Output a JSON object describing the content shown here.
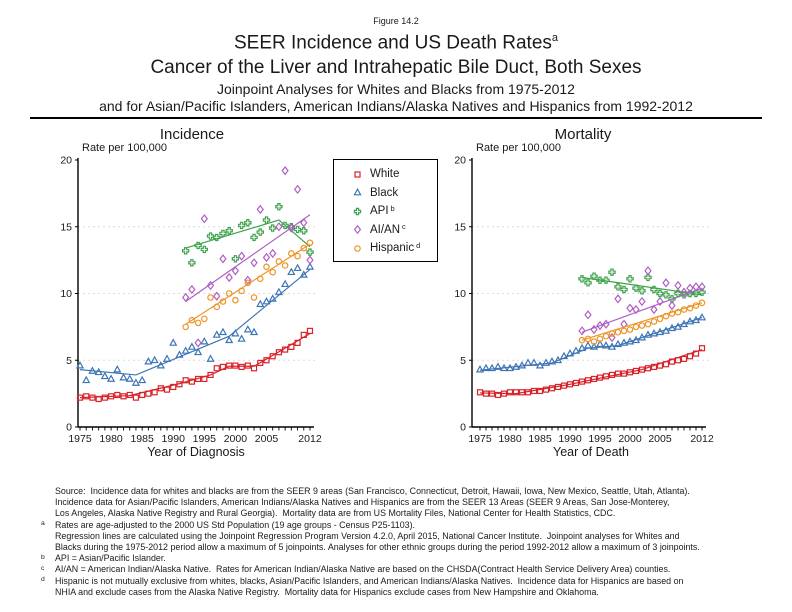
{
  "figure_label": "Figure 14.2",
  "title": {
    "line1": "SEER Incidence and US Death Rates",
    "line1_sup": "a",
    "line2": "Cancer of the Liver and Intrahepatic Bile Duct, Both Sexes",
    "line3": "Joinpoint Analyses for Whites and Blacks from 1975-2012",
    "line4": "and for Asian/Pacific Islanders, American Indians/Alaska Natives and Hispanics from 1992-2012"
  },
  "legend": {
    "items": [
      {
        "label": "White",
        "sup": ""
      },
      {
        "label": "Black",
        "sup": ""
      },
      {
        "label": "API",
        "sup": "b"
      },
      {
        "label": "AI/AN",
        "sup": "c"
      },
      {
        "label": "Hispanic",
        "sup": "d"
      }
    ]
  },
  "chart_data": [
    {
      "id": "incidence",
      "type": "scatter",
      "title": "Incidence",
      "y_axis_label": "Rate per 100,000",
      "xlabel": "Year of Diagnosis",
      "xlim": [
        1975,
        2012
      ],
      "ylim": [
        0,
        20
      ],
      "y_ticks": [
        0,
        5,
        10,
        15,
        20
      ],
      "gridlines": [
        5,
        10,
        15
      ],
      "x_ticks_labeled": [
        1975,
        1980,
        1985,
        1990,
        1995,
        2000,
        2005,
        2012
      ],
      "series": [
        {
          "name": "White",
          "marker": "square",
          "color": "#d8232a",
          "x_start": 1975,
          "values": [
            2.2,
            2.3,
            2.2,
            2.1,
            2.2,
            2.3,
            2.4,
            2.3,
            2.4,
            2.2,
            2.4,
            2.5,
            2.6,
            2.9,
            2.8,
            3.0,
            3.2,
            3.5,
            3.4,
            3.6,
            3.6,
            3.9,
            4.4,
            4.5,
            4.6,
            4.6,
            4.5,
            4.6,
            4.4,
            4.8,
            5.0,
            5.3,
            5.6,
            5.8,
            6.0,
            6.3,
            6.9,
            7.2
          ],
          "trend": [
            [
              1975,
              2.2
            ],
            [
              1983,
              2.35
            ],
            [
              1991,
              3.25
            ],
            [
              1996,
              3.9
            ],
            [
              1999,
              4.55
            ],
            [
              2003,
              4.55
            ],
            [
              2012,
              7.0
            ]
          ]
        },
        {
          "name": "Black",
          "marker": "triangle",
          "color": "#3e75b5",
          "x_start": 1975,
          "values": [
            4.6,
            3.5,
            4.2,
            4.1,
            3.8,
            3.6,
            4.3,
            3.7,
            3.6,
            3.3,
            3.5,
            4.9,
            5.0,
            4.6,
            5.1,
            6.3,
            5.4,
            5.7,
            6.0,
            5.6,
            6.4,
            5.1,
            6.9,
            7.1,
            6.5,
            7.0,
            6.6,
            7.3,
            7.1,
            9.2,
            9.4,
            9.6,
            10.1,
            10.7,
            11.6,
            11.9,
            11.4,
            12.0
          ],
          "trend": [
            [
              1975,
              4.3
            ],
            [
              1984,
              3.9
            ],
            [
              1999,
              6.8
            ],
            [
              2012,
              11.8
            ]
          ]
        },
        {
          "name": "API",
          "marker": "plus",
          "color": "#3fa24c",
          "x_start": 1992,
          "values": [
            13.2,
            12.3,
            13.6,
            13.3,
            14.3,
            14.2,
            14.5,
            14.7,
            12.6,
            15.1,
            15.3,
            14.2,
            14.6,
            15.5,
            14.9,
            16.5,
            15.1,
            15.0,
            14.8,
            14.7,
            13.1
          ],
          "trend": [
            [
              1992,
              13.4
            ],
            [
              2007,
              15.5
            ],
            [
              2012,
              13.5
            ]
          ]
        },
        {
          "name": "AI/AN",
          "marker": "diamond",
          "color": "#ae5fc4",
          "x_start": 1992,
          "values": [
            9.7,
            10.3,
            6.3,
            15.6,
            10.6,
            9.8,
            12.6,
            11.2,
            11.7,
            12.8,
            11.0,
            12.3,
            16.3,
            12.7,
            13.0,
            15.0,
            19.2,
            14.9,
            17.8,
            15.3,
            12.5
          ],
          "trend": [
            [
              1992,
              9.4
            ],
            [
              2012,
              15.9
            ]
          ]
        },
        {
          "name": "Hispanic",
          "marker": "circle",
          "color": "#ef9426",
          "x_start": 1992,
          "values": [
            7.5,
            8.0,
            7.8,
            8.1,
            9.7,
            9.0,
            9.4,
            10.0,
            9.5,
            10.2,
            10.8,
            9.7,
            11.1,
            12.0,
            11.6,
            12.4,
            12.1,
            13.0,
            12.8,
            13.4,
            13.8
          ],
          "trend": [
            [
              1992,
              7.7
            ],
            [
              2012,
              13.7
            ]
          ]
        }
      ]
    },
    {
      "id": "mortality",
      "type": "scatter",
      "title": "Mortality",
      "y_axis_label": "Rate per 100,000",
      "xlabel": "Year of Death",
      "xlim": [
        1975,
        2012
      ],
      "ylim": [
        0,
        20
      ],
      "y_ticks": [
        0,
        5,
        10,
        15,
        20
      ],
      "gridlines": [
        5,
        10,
        15
      ],
      "x_ticks_labeled": [
        1975,
        1980,
        1985,
        1990,
        1995,
        2000,
        2005,
        2012
      ],
      "series": [
        {
          "name": "White",
          "marker": "square",
          "color": "#d8232a",
          "x_start": 1975,
          "values": [
            2.6,
            2.5,
            2.5,
            2.4,
            2.5,
            2.6,
            2.6,
            2.6,
            2.6,
            2.7,
            2.7,
            2.8,
            2.9,
            3.0,
            3.1,
            3.2,
            3.3,
            3.4,
            3.5,
            3.6,
            3.7,
            3.8,
            3.9,
            4.0,
            4.0,
            4.1,
            4.2,
            4.3,
            4.4,
            4.5,
            4.6,
            4.7,
            4.9,
            5.0,
            5.1,
            5.3,
            5.5,
            5.9
          ],
          "trend": [
            [
              1975,
              2.55
            ],
            [
              1981,
              2.5
            ],
            [
              1990,
              3.2
            ],
            [
              2002,
              4.3
            ],
            [
              2012,
              5.8
            ]
          ]
        },
        {
          "name": "Black",
          "marker": "triangle",
          "color": "#3e75b5",
          "x_start": 1975,
          "values": [
            4.3,
            4.4,
            4.4,
            4.5,
            4.4,
            4.4,
            4.5,
            4.6,
            4.8,
            4.8,
            4.6,
            4.8,
            4.9,
            5.0,
            5.3,
            5.5,
            5.7,
            5.9,
            6.1,
            6.0,
            6.2,
            6.1,
            6.0,
            6.2,
            6.3,
            6.4,
            6.5,
            6.7,
            6.9,
            7.0,
            7.1,
            7.2,
            7.4,
            7.5,
            7.7,
            7.9,
            8.0,
            8.2
          ],
          "trend": [
            [
              1975,
              4.25
            ],
            [
              1987,
              4.8
            ],
            [
              1993,
              5.9
            ],
            [
              1998,
              6.1
            ],
            [
              2012,
              8.2
            ]
          ]
        },
        {
          "name": "API",
          "marker": "plus",
          "color": "#3fa24c",
          "x_start": 1992,
          "values": [
            11.1,
            10.8,
            11.3,
            11.0,
            11.0,
            11.6,
            10.5,
            10.3,
            11.1,
            10.4,
            10.2,
            11.2,
            10.3,
            10.0,
            9.9,
            9.6,
            10.0,
            9.9,
            10.0,
            10.0,
            10.1
          ],
          "trend": [
            [
              1992,
              11.2
            ],
            [
              2012,
              9.9
            ]
          ]
        },
        {
          "name": "AI/AN",
          "marker": "diamond",
          "color": "#ae5fc4",
          "x_start": 1992,
          "values": [
            7.2,
            8.4,
            7.3,
            7.6,
            7.7,
            6.7,
            9.6,
            7.7,
            8.9,
            8.8,
            9.4,
            11.7,
            8.8,
            9.4,
            10.8,
            9.1,
            10.6,
            10.1,
            10.4,
            10.5,
            10.5
          ],
          "trend": [
            [
              1992,
              7.1
            ],
            [
              2012,
              10.4
            ]
          ]
        },
        {
          "name": "Hispanic",
          "marker": "circle",
          "color": "#ef9426",
          "x_start": 1992,
          "values": [
            6.5,
            6.6,
            6.4,
            6.6,
            6.8,
            7.0,
            7.1,
            7.2,
            7.3,
            7.5,
            7.6,
            7.7,
            7.9,
            8.1,
            8.3,
            8.5,
            8.6,
            8.8,
            8.9,
            9.1,
            9.3
          ],
          "trend": [
            [
              1992,
              6.5
            ],
            [
              2012,
              9.3
            ]
          ]
        }
      ]
    }
  ],
  "footnotes": [
    {
      "sup": "",
      "text": "Source:  Incidence data for whites and blacks are from the SEER 9 areas (San Francisco, Connecticut, Detroit, Hawaii, Iowa, New Mexico, Seattle, Utah, Atlanta)."
    },
    {
      "sup": "",
      "text": "Incidence data for Asian/Pacific Islanders, American Indians/Alaska Natives and Hispanics are from the SEER 13 Areas (SEER 9 Areas, San Jose-Monterey,"
    },
    {
      "sup": "",
      "text": "Los Angeles, Alaska Native Registry and Rural Georgia).  Mortality data are from US Mortality Files, National Center for Health Statistics, CDC."
    },
    {
      "sup": "a",
      "text": "Rates are age-adjusted to the 2000 US Std Population (19 age groups - Census P25-1103)."
    },
    {
      "sup": "",
      "text": "Regression lines are calculated using the Joinpoint Regression Program Version 4.2.0, April 2015, National Cancer Institute.  Joinpoint analyses for Whites and"
    },
    {
      "sup": "",
      "text": "Blacks during the 1975-2012 period allow a maximum of 5 joinpoints. Analyses for other ethnic groups during the period 1992-2012 allow a maximum of 3 joinpoints."
    },
    {
      "sup": "b",
      "text": "API = Asian/Pacific Islander."
    },
    {
      "sup": "c",
      "text": "AI/AN = American Indian/Alaska Native.  Rates for American Indian/Alaska Native are based on the CHSDA(Contract Health Service Delivery Area) counties."
    },
    {
      "sup": "d",
      "text": "Hispanic is not mutually exclusive from whites, blacks, Asian/Pacific Islanders, and American Indians/Alaska Natives.  Incidence data for Hispanics are based on"
    },
    {
      "sup": "",
      "text": "NHIA and exclude cases from the Alaska Native Registry.  Mortality data for Hispanics exclude cases from New Hampshire and Oklahoma."
    }
  ]
}
